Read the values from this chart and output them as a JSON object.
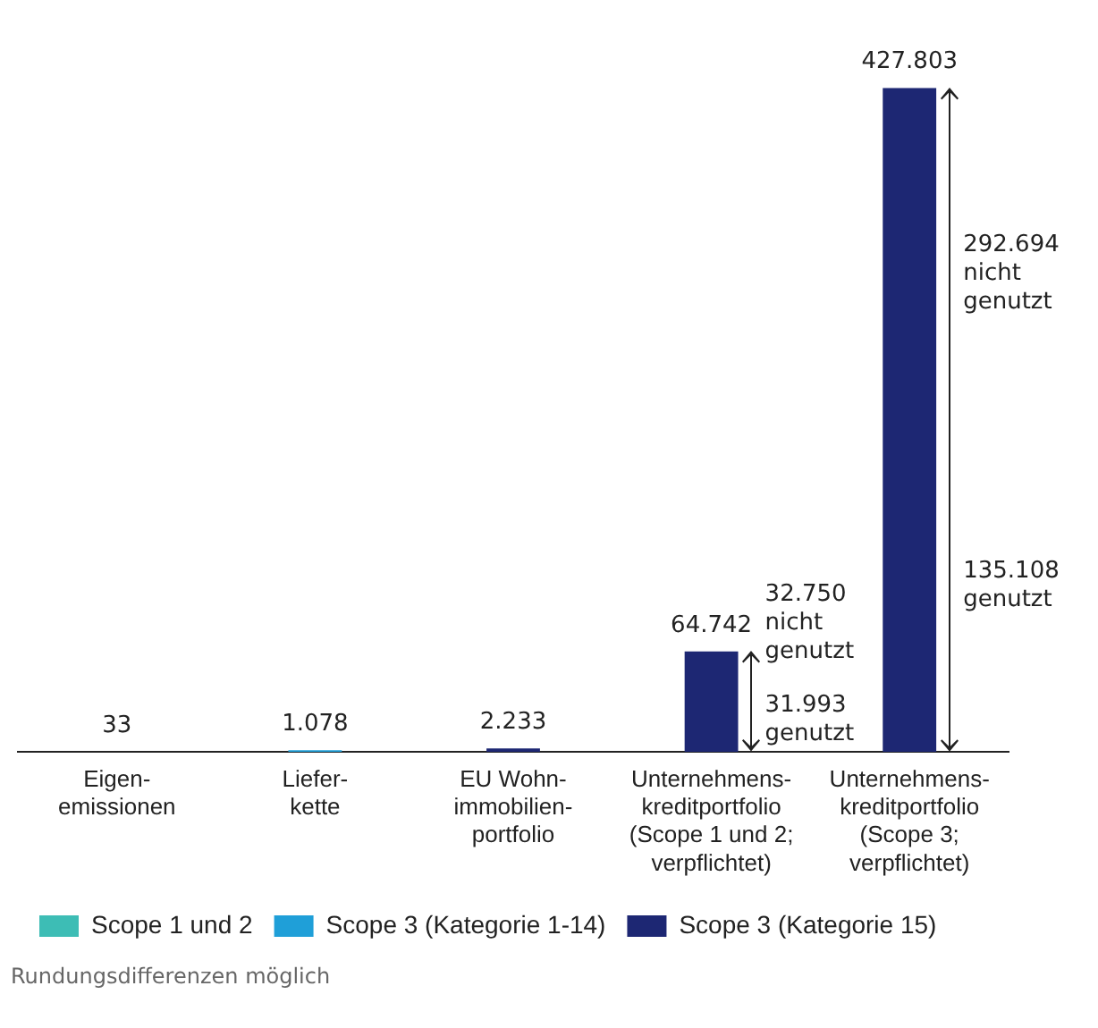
{
  "chart_data": {
    "type": "bar",
    "categories": [
      "Eigen-\nemissionen",
      "Liefer-\nkette",
      "EU Wohn-\nimmobilien-\nportfolio",
      "Unternehmens-\nkreditportfolio\n(Scope 1 und 2;\nverpflichtet)",
      "Unternehmens-\nkreditportfolio\n(Scope 3;\nverpflichtet)"
    ],
    "series": [
      {
        "name": "Scope 1 und 2",
        "color": "#3dbdb5",
        "values": [
          33,
          null,
          null,
          null,
          null
        ],
        "value_labels": [
          "33",
          null,
          null,
          null,
          null
        ]
      },
      {
        "name": "Scope 3 (Kategorie 1-14)",
        "color": "#1f9fd8",
        "values": [
          null,
          1078,
          null,
          null,
          null
        ],
        "value_labels": [
          null,
          "1.078",
          null,
          null,
          null
        ]
      },
      {
        "name": "Scope 3 (Kategorie 15)",
        "color": "#1d2773",
        "values": [
          null,
          null,
          2233,
          64742,
          427803
        ],
        "value_labels": [
          null,
          null,
          "2.233",
          "64.742",
          "427.803"
        ]
      }
    ],
    "annotations": [
      "32.750\nnicht\ngenutzt",
      "31.993\ngenutzt",
      "292.694\nnicht\ngenutzt",
      "135.108\ngenutzt",
      "Rundungsdifferenzen möglich"
    ],
    "legend": "bottom",
    "grid": false,
    "tick_labels": "x"
  }
}
